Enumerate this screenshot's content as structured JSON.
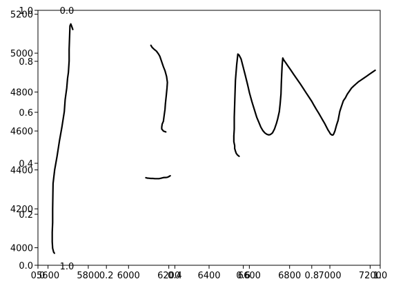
{
  "chart_data": {
    "type": "line",
    "title": "",
    "xlabel": "",
    "ylabel": "",
    "grid": false,
    "axes": [
      {
        "role": "data",
        "xlim": [
          5550,
          7250
        ],
        "ylim": [
          3910,
          5220
        ],
        "x_ticks": [
          5600,
          5800,
          6000,
          6200,
          6400,
          6600,
          6800,
          7000,
          7200
        ],
        "y_ticks": [
          4000,
          4200,
          4400,
          4600,
          4800,
          5000,
          5200
        ],
        "series": [
          {
            "x": [
              5632,
              5628,
              5623,
              5621,
              5621,
              5623,
              5623,
              5625,
              5633,
              5645,
              5657,
              5669,
              5681,
              5685,
              5693,
              5697,
              5701,
              5705,
              5705,
              5709,
              5713,
              5717,
              5723
            ],
            "y": [
              3972,
              3977,
              3997,
              4030,
              4080,
              4130,
              4200,
              4330,
              4400,
              4470,
              4550,
              4620,
              4700,
              4760,
              4820,
              4870,
              4900,
              4960,
              5020,
              5140,
              5150,
              5140,
              5122
            ]
          },
          {
            "x": [
              6185,
              6181,
              6177,
              6173,
              6165,
              6165,
              6167,
              6173,
              6177,
              6181,
              6183,
              6187,
              6191,
              6193,
              6189,
              6181,
              6173,
              6163,
              6155,
              6149,
              6139,
              6127,
              6117,
              6111
            ],
            "y": [
              4595,
              4597,
              4598,
              4600,
              4610,
              4620,
              4635,
              4650,
              4680,
              4710,
              4740,
              4780,
              4820,
              4850,
              4880,
              4910,
              4930,
              4960,
              4985,
              4995,
              5010,
              5020,
              5030,
              5040
            ]
          },
          {
            "x": [
              6086,
              6093,
              6101,
              6111,
              6121,
              6131,
              6141,
              6151,
              6161,
              6171,
              6179,
              6187,
              6193,
              6199,
              6207
            ],
            "y": [
              4360,
              4358,
              4357,
              4356,
              4356,
              4355,
              4355,
              4355,
              4357,
              4360,
              4361,
              4361,
              4362,
              4365,
              4370
            ]
          },
          {
            "x": [
              6549,
              6541,
              6535,
              6531,
              6527,
              6527,
              6523,
              6523,
              6525,
              6525,
              6528,
              6531,
              6537,
              6543,
              6549,
              6559,
              6569,
              6579,
              6591,
              6601,
              6613,
              6625,
              6637,
              6647,
              6657,
              6667,
              6677,
              6687,
              6697,
              6705,
              6715,
              6725,
              6735,
              6741,
              6749,
              6753,
              6757,
              6759,
              6761,
              6763,
              6766,
              6771,
              6781,
              6791,
              6805,
              6821,
              6837,
              6853,
              6867,
              6881,
              6895,
              6909,
              6921,
              6933,
              6945,
              6955,
              6965,
              6975,
              6983,
              6991,
              6997,
              7003,
              7009,
              7013,
              7016,
              7019,
              7025,
              7033,
              7041,
              7049,
              7057,
              7067,
              7077,
              7087,
              7097,
              7107,
              7117,
              7129,
              7141,
              7155,
              7169,
              7183,
              7197,
              7211,
              7225
            ],
            "y": [
              4470,
              4477,
              4485,
              4497,
              4510,
              4525,
              4545,
              4575,
              4610,
              4670,
              4760,
              4860,
              4940,
              4995,
              4990,
              4970,
              4930,
              4890,
              4840,
              4795,
              4750,
              4710,
              4670,
              4645,
              4620,
              4602,
              4590,
              4583,
              4580,
              4582,
              4590,
              4610,
              4640,
              4663,
              4700,
              4740,
              4790,
              4845,
              4895,
              4938,
              4975,
              4965,
              4950,
              4935,
              4914,
              4890,
              4866,
              4842,
              4820,
              4798,
              4776,
              4754,
              4732,
              4711,
              4691,
              4673,
              4655,
              4637,
              4621,
              4605,
              4595,
              4585,
              4580,
              4579,
              4580,
              4585,
              4600,
              4630,
              4655,
              4700,
              4725,
              4755,
              4770,
              4790,
              4805,
              4820,
              4830,
              4841,
              4852,
              4862,
              4872,
              4882,
              4892,
              4902,
              4912
            ]
          }
        ]
      },
      {
        "role": "overlay",
        "xlim": [
          0,
          1
        ],
        "ylim": [
          0,
          1
        ],
        "x_ticks": [
          "0.0",
          "0.2",
          "0.4",
          "0.6",
          "0.8",
          "1.0"
        ],
        "y_ticks": [
          "0.0",
          "0.2",
          "0.4",
          "0.6",
          "0.8",
          "1.0"
        ],
        "top_label": "0.0",
        "bottom_label": "1.0"
      }
    ]
  }
}
